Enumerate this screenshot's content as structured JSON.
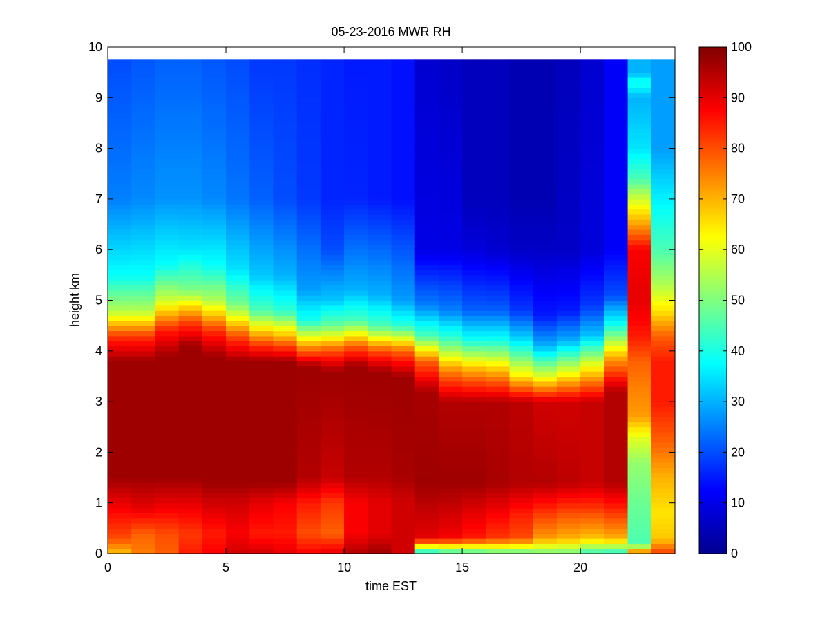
{
  "chart_data": {
    "type": "heatmap",
    "title": "05-23-2016 MWR RH",
    "xlabel": "time EST",
    "ylabel": "height km",
    "xlim": [
      0,
      24
    ],
    "ylim": [
      0,
      10
    ],
    "x_ticks": [
      "0",
      "5",
      "10",
      "15",
      "20"
    ],
    "y_ticks": [
      "0",
      "1",
      "2",
      "3",
      "4",
      "5",
      "6",
      "7",
      "8",
      "9",
      "10"
    ],
    "colorbar": {
      "colormap": "jet",
      "clim": [
        0,
        100
      ],
      "ticks": [
        "0",
        "10",
        "20",
        "30",
        "40",
        "50",
        "60",
        "70",
        "80",
        "90",
        "100"
      ]
    },
    "grid": false,
    "x": [
      0.5,
      1.5,
      2.5,
      3.5,
      4.5,
      5.5,
      6.5,
      7.5,
      8.5,
      9.5,
      10.5,
      11.5,
      12.5,
      13.5,
      14.5,
      15.5,
      16.5,
      17.5,
      18.5,
      19.5,
      20.5,
      21.5,
      22.5,
      23.5
    ],
    "columns": [
      {
        "t": 0.5,
        "profile": [
          [
            0,
            68
          ],
          [
            0.3,
            80
          ],
          [
            0.9,
            88
          ],
          [
            1.5,
            97
          ],
          [
            3.8,
            97
          ],
          [
            4.3,
            82
          ],
          [
            4.8,
            55
          ],
          [
            5.5,
            38
          ],
          [
            7.0,
            25
          ],
          [
            9.7,
            20
          ]
        ]
      },
      {
        "t": 1.5,
        "profile": [
          [
            0,
            75
          ],
          [
            0.4,
            78
          ],
          [
            0.9,
            90
          ],
          [
            1.5,
            97
          ],
          [
            3.8,
            97
          ],
          [
            4.3,
            82
          ],
          [
            4.8,
            55
          ],
          [
            5.5,
            38
          ],
          [
            7.0,
            26
          ],
          [
            9.7,
            21
          ]
        ]
      },
      {
        "t": 2.5,
        "profile": [
          [
            0,
            78
          ],
          [
            0.4,
            80
          ],
          [
            1.0,
            90
          ],
          [
            1.5,
            97
          ],
          [
            3.9,
            97
          ],
          [
            4.4,
            85
          ],
          [
            5.0,
            58
          ],
          [
            5.7,
            38
          ],
          [
            7.0,
            27
          ],
          [
            9.7,
            22
          ]
        ]
      },
      {
        "t": 3.5,
        "profile": [
          [
            0,
            85
          ],
          [
            0.4,
            82
          ],
          [
            1.0,
            90
          ],
          [
            1.5,
            97
          ],
          [
            4.1,
            97
          ],
          [
            4.6,
            80
          ],
          [
            5.2,
            50
          ],
          [
            6.0,
            35
          ],
          [
            7.0,
            27
          ],
          [
            9.7,
            22
          ]
        ]
      },
      {
        "t": 4.5,
        "profile": [
          [
            0,
            88
          ],
          [
            0.4,
            85
          ],
          [
            1.0,
            92
          ],
          [
            1.4,
            97
          ],
          [
            3.9,
            97
          ],
          [
            4.4,
            83
          ],
          [
            5.0,
            55
          ],
          [
            5.7,
            38
          ],
          [
            7.0,
            26
          ],
          [
            9.7,
            21
          ]
        ]
      },
      {
        "t": 5.5,
        "profile": [
          [
            0,
            92
          ],
          [
            0.4,
            88
          ],
          [
            1.0,
            92
          ],
          [
            1.4,
            97
          ],
          [
            3.8,
            97
          ],
          [
            4.3,
            80
          ],
          [
            4.9,
            50
          ],
          [
            5.6,
            35
          ],
          [
            7.0,
            24
          ],
          [
            9.7,
            20
          ]
        ]
      },
      {
        "t": 6.5,
        "profile": [
          [
            0,
            92
          ],
          [
            0.4,
            85
          ],
          [
            1.0,
            90
          ],
          [
            1.4,
            97
          ],
          [
            3.8,
            97
          ],
          [
            4.2,
            78
          ],
          [
            4.8,
            45
          ],
          [
            5.5,
            32
          ],
          [
            7.0,
            22
          ],
          [
            9.7,
            18
          ]
        ]
      },
      {
        "t": 7.5,
        "profile": [
          [
            0,
            90
          ],
          [
            0.4,
            85
          ],
          [
            1.0,
            88
          ],
          [
            1.4,
            97
          ],
          [
            3.8,
            97
          ],
          [
            4.2,
            75
          ],
          [
            4.8,
            42
          ],
          [
            5.5,
            30
          ],
          [
            7.0,
            20
          ],
          [
            9.7,
            18
          ]
        ]
      },
      {
        "t": 8.5,
        "profile": [
          [
            0,
            88
          ],
          [
            0.4,
            80
          ],
          [
            1.0,
            85
          ],
          [
            1.5,
            95
          ],
          [
            3.7,
            97
          ],
          [
            4.1,
            72
          ],
          [
            4.6,
            40
          ],
          [
            5.2,
            28
          ],
          [
            7.0,
            18
          ],
          [
            9.7,
            17
          ]
        ]
      },
      {
        "t": 9.5,
        "profile": [
          [
            0,
            90
          ],
          [
            0.4,
            78
          ],
          [
            1.0,
            82
          ],
          [
            1.5,
            93
          ],
          [
            3.6,
            97
          ],
          [
            4.0,
            80
          ],
          [
            4.5,
            48
          ],
          [
            5.0,
            32
          ],
          [
            6.0,
            20
          ],
          [
            7.0,
            16
          ],
          [
            9.7,
            16
          ]
        ]
      },
      {
        "t": 10.5,
        "profile": [
          [
            0,
            95
          ],
          [
            0.4,
            88
          ],
          [
            1.0,
            88
          ],
          [
            1.5,
            95
          ],
          [
            3.7,
            97
          ],
          [
            4.1,
            78
          ],
          [
            4.6,
            45
          ],
          [
            5.2,
            30
          ],
          [
            7.0,
            16
          ],
          [
            9.7,
            15
          ]
        ]
      },
      {
        "t": 11.5,
        "profile": [
          [
            0,
            97
          ],
          [
            0.4,
            90
          ],
          [
            1.0,
            90
          ],
          [
            1.5,
            95
          ],
          [
            3.6,
            97
          ],
          [
            4.0,
            80
          ],
          [
            4.5,
            45
          ],
          [
            5.1,
            30
          ],
          [
            7.0,
            15
          ],
          [
            9.7,
            15
          ]
        ]
      },
      {
        "t": 12.5,
        "profile": [
          [
            0,
            92
          ],
          [
            0.4,
            92
          ],
          [
            1.0,
            92
          ],
          [
            1.5,
            96
          ],
          [
            3.5,
            97
          ],
          [
            4.0,
            78
          ],
          [
            4.5,
            42
          ],
          [
            5.0,
            28
          ],
          [
            7.0,
            14
          ],
          [
            9.7,
            14
          ]
        ]
      },
      {
        "t": 13.5,
        "profile": [
          [
            0,
            35
          ],
          [
            0.3,
            90
          ],
          [
            0.8,
            93
          ],
          [
            1.4,
            97
          ],
          [
            3.2,
            96
          ],
          [
            3.8,
            78
          ],
          [
            4.3,
            45
          ],
          [
            4.9,
            25
          ],
          [
            6.0,
            10
          ],
          [
            9.7,
            8
          ]
        ]
      },
      {
        "t": 14.5,
        "profile": [
          [
            0,
            40
          ],
          [
            0.3,
            88
          ],
          [
            0.8,
            92
          ],
          [
            1.4,
            97
          ],
          [
            3.0,
            95
          ],
          [
            3.6,
            75
          ],
          [
            4.2,
            45
          ],
          [
            4.8,
            25
          ],
          [
            6.0,
            10
          ],
          [
            9.7,
            7
          ]
        ]
      },
      {
        "t": 15.5,
        "profile": [
          [
            0,
            42
          ],
          [
            0.3,
            85
          ],
          [
            0.8,
            90
          ],
          [
            1.4,
            97
          ],
          [
            3.0,
            95
          ],
          [
            3.6,
            72
          ],
          [
            4.2,
            40
          ],
          [
            4.8,
            22
          ],
          [
            6.0,
            9
          ],
          [
            7.0,
            6
          ],
          [
            9.7,
            6
          ]
        ]
      },
      {
        "t": 16.5,
        "profile": [
          [
            0,
            45
          ],
          [
            0.3,
            82
          ],
          [
            0.8,
            88
          ],
          [
            1.4,
            96
          ],
          [
            3.0,
            95
          ],
          [
            3.6,
            70
          ],
          [
            4.2,
            40
          ],
          [
            4.8,
            22
          ],
          [
            6.0,
            8
          ],
          [
            7.0,
            6
          ],
          [
            9.7,
            6
          ]
        ]
      },
      {
        "t": 17.5,
        "profile": [
          [
            0,
            45
          ],
          [
            0.3,
            80
          ],
          [
            0.8,
            85
          ],
          [
            1.4,
            95
          ],
          [
            3.0,
            94
          ],
          [
            3.5,
            65
          ],
          [
            4.2,
            35
          ],
          [
            4.8,
            18
          ],
          [
            6.0,
            7
          ],
          [
            7.0,
            5
          ],
          [
            9.7,
            5
          ]
        ]
      },
      {
        "t": 18.5,
        "profile": [
          [
            0,
            48
          ],
          [
            0.3,
            72
          ],
          [
            0.8,
            82
          ],
          [
            1.4,
            95
          ],
          [
            3.0,
            92
          ],
          [
            3.5,
            60
          ],
          [
            4.1,
            30
          ],
          [
            4.7,
            15
          ],
          [
            6.0,
            7
          ],
          [
            7.0,
            5
          ],
          [
            9.7,
            5
          ]
        ]
      },
      {
        "t": 19.5,
        "profile": [
          [
            0,
            48
          ],
          [
            0.3,
            70
          ],
          [
            0.8,
            80
          ],
          [
            1.4,
            94
          ],
          [
            3.0,
            92
          ],
          [
            3.6,
            60
          ],
          [
            4.2,
            30
          ],
          [
            4.8,
            15
          ],
          [
            6.0,
            7
          ],
          [
            9.7,
            6
          ]
        ]
      },
      {
        "t": 20.5,
        "profile": [
          [
            0,
            42
          ],
          [
            0.3,
            68
          ],
          [
            0.8,
            80
          ],
          [
            1.4,
            93
          ],
          [
            3.0,
            93
          ],
          [
            3.7,
            62
          ],
          [
            4.3,
            32
          ],
          [
            4.9,
            18
          ],
          [
            6.0,
            9
          ],
          [
            9.7,
            8
          ]
        ]
      },
      {
        "t": 21.5,
        "profile": [
          [
            0,
            40
          ],
          [
            0.3,
            70
          ],
          [
            0.8,
            82
          ],
          [
            1.4,
            95
          ],
          [
            3.2,
            95
          ],
          [
            3.9,
            70
          ],
          [
            4.5,
            40
          ],
          [
            5.1,
            20
          ],
          [
            6.0,
            12
          ],
          [
            9.7,
            12
          ]
        ]
      },
      {
        "t": 22.5,
        "profile": [
          [
            0,
            80
          ],
          [
            0.2,
            45
          ],
          [
            1.0,
            48
          ],
          [
            1.8,
            52
          ],
          [
            2.3,
            60
          ],
          [
            2.7,
            72
          ],
          [
            3.3,
            75
          ],
          [
            3.8,
            78
          ],
          [
            4.3,
            85
          ],
          [
            5.0,
            90
          ],
          [
            6.0,
            88
          ],
          [
            6.4,
            75
          ],
          [
            7.0,
            58
          ],
          [
            7.4,
            45
          ],
          [
            8.0,
            35
          ],
          [
            9.0,
            30
          ],
          [
            9.3,
            40
          ],
          [
            9.5,
            30
          ],
          [
            9.7,
            30
          ]
        ]
      },
      {
        "t": 23.5,
        "profile": [
          [
            0,
            82
          ],
          [
            0.3,
            68
          ],
          [
            0.8,
            65
          ],
          [
            1.5,
            70
          ],
          [
            2.2,
            78
          ],
          [
            3.0,
            85
          ],
          [
            3.8,
            85
          ],
          [
            4.3,
            78
          ],
          [
            4.8,
            65
          ],
          [
            5.3,
            55
          ],
          [
            6.0,
            45
          ],
          [
            6.8,
            38
          ],
          [
            8.0,
            28
          ],
          [
            9.7,
            28
          ]
        ]
      }
    ]
  }
}
